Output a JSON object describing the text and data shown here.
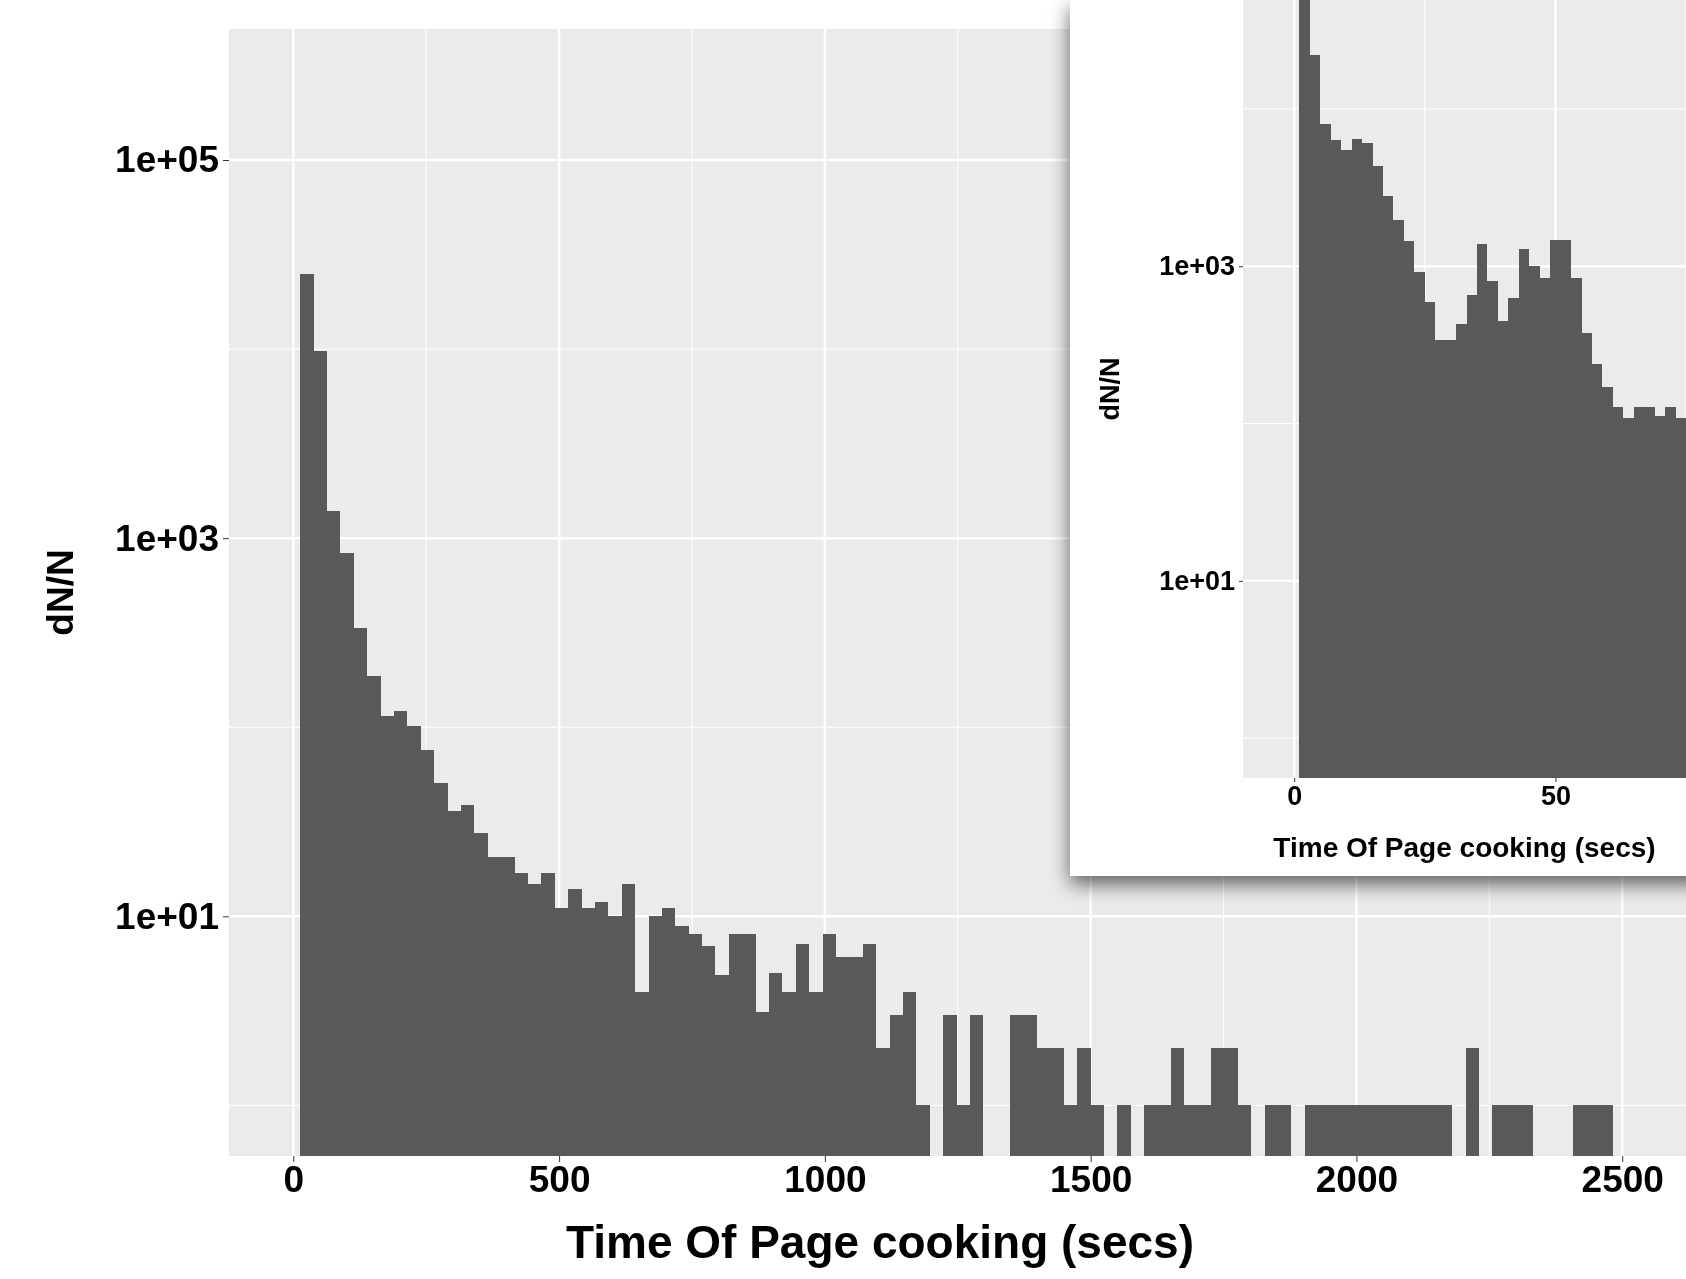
{
  "chart_data": [
    {
      "type": "histogram",
      "xlabel": "Time Of Page cooking (secs)",
      "ylabel": "dN/N",
      "log": "y",
      "grid": true,
      "color": "#595959",
      "xlim": [
        -121,
        2620
      ],
      "xticks": [
        0,
        500,
        1000,
        1500,
        2000,
        2500
      ],
      "ylim": [
        0.54,
        493000
      ],
      "yticks": [
        {
          "value": 10,
          "label": "1e+01"
        },
        {
          "value": 1000,
          "label": "1e+03"
        },
        {
          "value": 100000,
          "label": "1e+05"
        }
      ],
      "bins": [
        13,
        38.2,
        63.4,
        88.6,
        113.8,
        139,
        164.2,
        189.4,
        214.6,
        239.8,
        265,
        290.2,
        315.4,
        340.6,
        365.8,
        391,
        416.2,
        441.4,
        466.6,
        491.8,
        517,
        542.2,
        567.4,
        592.6,
        617.8,
        643,
        668.2,
        693.4,
        718.6,
        743.8,
        769,
        794.2,
        819.4,
        844.6,
        869.8,
        895,
        920.2,
        945.4,
        970.6,
        995.8,
        1021,
        1046.2,
        1071.4,
        1096.6,
        1121.8,
        1147,
        1172.2,
        1197.4,
        1222.6,
        1247.8,
        1273,
        1298.2,
        1348.6,
        1373.8,
        1399,
        1424.2,
        1449.4,
        1474.6,
        1499.8,
        1525,
        1550.2,
        1575.4,
        1600.6,
        1625.8,
        1651,
        1676.2,
        1701.4,
        1726.6,
        1751.8,
        1777,
        1802.2,
        1827.4,
        1852.6,
        1877.8,
        1903,
        1928.2,
        1953.4,
        1978.6,
        2003.8,
        2029,
        2054.2,
        2079.4,
        2104.6,
        2129.8,
        2155,
        2180.2,
        2205.4,
        2230.6,
        2255.8,
        2281,
        2306.2,
        2331.4,
        2407,
        2432.2,
        2457.4,
        2482.6
      ],
      "values": [
        24900,
        9790,
        1400,
        830,
        334,
        186,
        115,
        122,
        101,
        76,
        51,
        36,
        39,
        27.5,
        20.7,
        20.7,
        17,
        14.9,
        17,
        11.1,
        14,
        11.1,
        11.9,
        10.1,
        14.9,
        4,
        10.1,
        11.1,
        8.9,
        8.1,
        7,
        4.9,
        8.1,
        8.1,
        3.1,
        5,
        4,
        7.1,
        4,
        8.1,
        6.1,
        6.1,
        7.1,
        2,
        3,
        4,
        1,
        null,
        3,
        1,
        3,
        null,
        3,
        3,
        2,
        2,
        1,
        2,
        1,
        null,
        1,
        null,
        1,
        1,
        2,
        1,
        1,
        2,
        2,
        1,
        null,
        1,
        1,
        null,
        1,
        1,
        1,
        1,
        1,
        1,
        1,
        1,
        1,
        1,
        1,
        null,
        2,
        null,
        1,
        1,
        1,
        null,
        1,
        1,
        1
      ]
    },
    {
      "type": "histogram",
      "xlabel": "Time Of Page cooking (secs)",
      "ylabel": "dN/N",
      "log": "y",
      "grid": true,
      "color": "#595959",
      "xlim": [
        -9.8,
        75
      ],
      "xticks": [
        0,
        50
      ],
      "ylim": [
        0.558,
        49300
      ],
      "yticks": [
        {
          "value": 10,
          "label": "1e+01"
        },
        {
          "value": 1000,
          "label": "1e+03"
        }
      ],
      "bins": [
        1,
        3,
        5,
        7,
        9,
        11,
        13,
        15,
        17,
        19,
        21,
        23,
        25,
        27,
        29,
        31,
        33,
        35,
        37,
        39,
        41,
        43,
        45,
        47,
        49,
        51,
        53,
        55,
        57,
        59,
        61,
        63,
        65,
        67,
        69,
        71,
        73,
        75
      ],
      "values": [
        49300,
        22200,
        8080,
        6310,
        5480,
        6470,
        6050,
        4320,
        2800,
        1980,
        1450,
        921,
        590,
        340,
        340,
        429,
        658,
        1380,
        807,
        447,
        631,
        1290,
        1000,
        841,
        1460,
        1460,
        841,
        376,
        239,
        172,
        127,
        108,
        127,
        127,
        112,
        127,
        108
      ]
    }
  ]
}
